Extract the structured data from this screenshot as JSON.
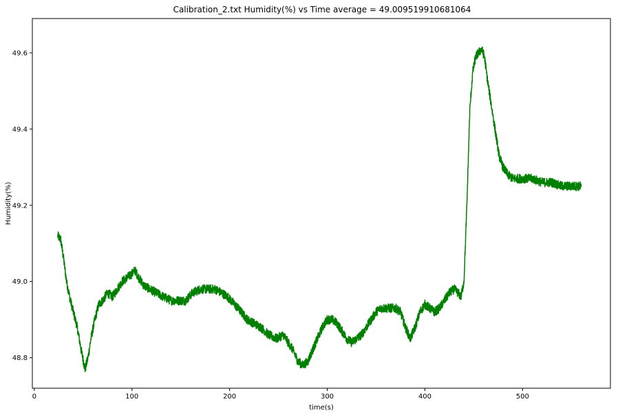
{
  "chart_data": {
    "type": "line",
    "title": "Calibration_2.txt  Humidity(%) vs Time  average = 49.009519910681064",
    "xlabel": "time(s)",
    "ylabel": "Humidity(%)",
    "xlim": [
      -2,
      590
    ],
    "ylim": [
      48.72,
      49.69
    ],
    "x_ticks": [
      0,
      100,
      200,
      300,
      400,
      500
    ],
    "y_ticks": [
      48.8,
      49.0,
      49.2,
      49.4,
      49.6
    ],
    "y_tick_labels": [
      "48.8",
      "49.0",
      "49.2",
      "49.4",
      "49.6"
    ],
    "grid": false,
    "legend": "none",
    "series": [
      {
        "color": "#008000",
        "noise": 0.012,
        "x": [
          24,
          27,
          30,
          33,
          37,
          40,
          44,
          48,
          52,
          55,
          58,
          62,
          66,
          70,
          75,
          80,
          85,
          90,
          95,
          100,
          103,
          107,
          112,
          118,
          125,
          132,
          140,
          148,
          155,
          162,
          170,
          178,
          185,
          192,
          198,
          205,
          212,
          218,
          225,
          232,
          240,
          248,
          255,
          260,
          265,
          270,
          275,
          280,
          285,
          290,
          295,
          300,
          305,
          310,
          315,
          320,
          325,
          330,
          335,
          340,
          345,
          350,
          355,
          360,
          365,
          370,
          375,
          380,
          385,
          390,
          395,
          400,
          405,
          410,
          415,
          420,
          425,
          430,
          434,
          437,
          440,
          443,
          446,
          449,
          452,
          455,
          458,
          461,
          464,
          467,
          470,
          473,
          476,
          480,
          485,
          490,
          495,
          500,
          510,
          520,
          530,
          540,
          550,
          560
        ],
        "y": [
          49.12,
          49.11,
          49.06,
          49.0,
          48.95,
          48.92,
          48.88,
          48.82,
          48.77,
          48.8,
          48.85,
          48.9,
          48.94,
          48.95,
          48.97,
          48.96,
          48.98,
          49.0,
          49.01,
          49.02,
          49.03,
          49.01,
          48.99,
          48.98,
          48.97,
          48.96,
          48.95,
          48.95,
          48.95,
          48.97,
          48.98,
          48.98,
          48.98,
          48.97,
          48.96,
          48.94,
          48.92,
          48.9,
          48.89,
          48.88,
          48.86,
          48.85,
          48.86,
          48.84,
          48.82,
          48.79,
          48.78,
          48.79,
          48.82,
          48.85,
          48.88,
          48.9,
          48.9,
          48.89,
          48.87,
          48.85,
          48.84,
          48.85,
          48.86,
          48.88,
          48.9,
          48.92,
          48.93,
          48.93,
          48.93,
          48.93,
          48.92,
          48.88,
          48.85,
          48.88,
          48.92,
          48.94,
          48.93,
          48.92,
          48.93,
          48.95,
          48.97,
          48.98,
          48.97,
          48.96,
          49.0,
          49.2,
          49.45,
          49.55,
          49.59,
          49.6,
          49.61,
          49.59,
          49.53,
          49.48,
          49.43,
          49.38,
          49.33,
          49.3,
          49.28,
          49.27,
          49.27,
          49.27,
          49.27,
          49.26,
          49.26,
          49.25,
          49.25,
          49.25
        ]
      }
    ]
  }
}
